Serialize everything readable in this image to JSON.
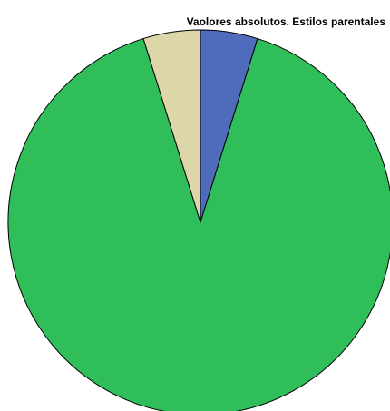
{
  "chart_data": {
    "type": "pie",
    "title": "Vaolores absolutos. Estilos parentales",
    "slices": [
      {
        "value": 4.8,
        "color": "#4f6bbb"
      },
      {
        "value": 90.4,
        "color": "#30be5b"
      },
      {
        "value": 4.8,
        "color": "#ddd6a8"
      }
    ],
    "start": "12 o'clock",
    "direction": "clockwise",
    "legend": "none"
  }
}
